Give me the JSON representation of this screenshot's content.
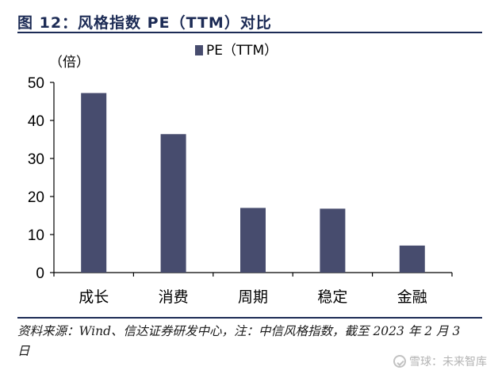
{
  "header": {
    "title": "图 12：风格指数 PE（TTM）对比"
  },
  "chart_data": {
    "type": "bar",
    "title": "图 12：风格指数 PE（TTM）对比",
    "categories": [
      "成长",
      "消费",
      "周期",
      "稳定",
      "金融"
    ],
    "series": [
      {
        "name": "PE（TTM）",
        "values": [
          47.2,
          36.4,
          17.0,
          16.8,
          7.1
        ],
        "color": "#474c6e"
      }
    ],
    "unit_label": "（倍）",
    "xlabel": "",
    "ylabel": "",
    "ylim": [
      0,
      50
    ],
    "yticks": [
      0,
      10,
      20,
      30,
      40,
      50
    ],
    "grid": false,
    "legend_position": "top-center"
  },
  "footer": {
    "source": "资料来源：Wind、信达证券研发中心，注：中信风格指数，截至 2023 年 2 月 3 日"
  },
  "watermark": {
    "text": "雪球：未来智库"
  }
}
